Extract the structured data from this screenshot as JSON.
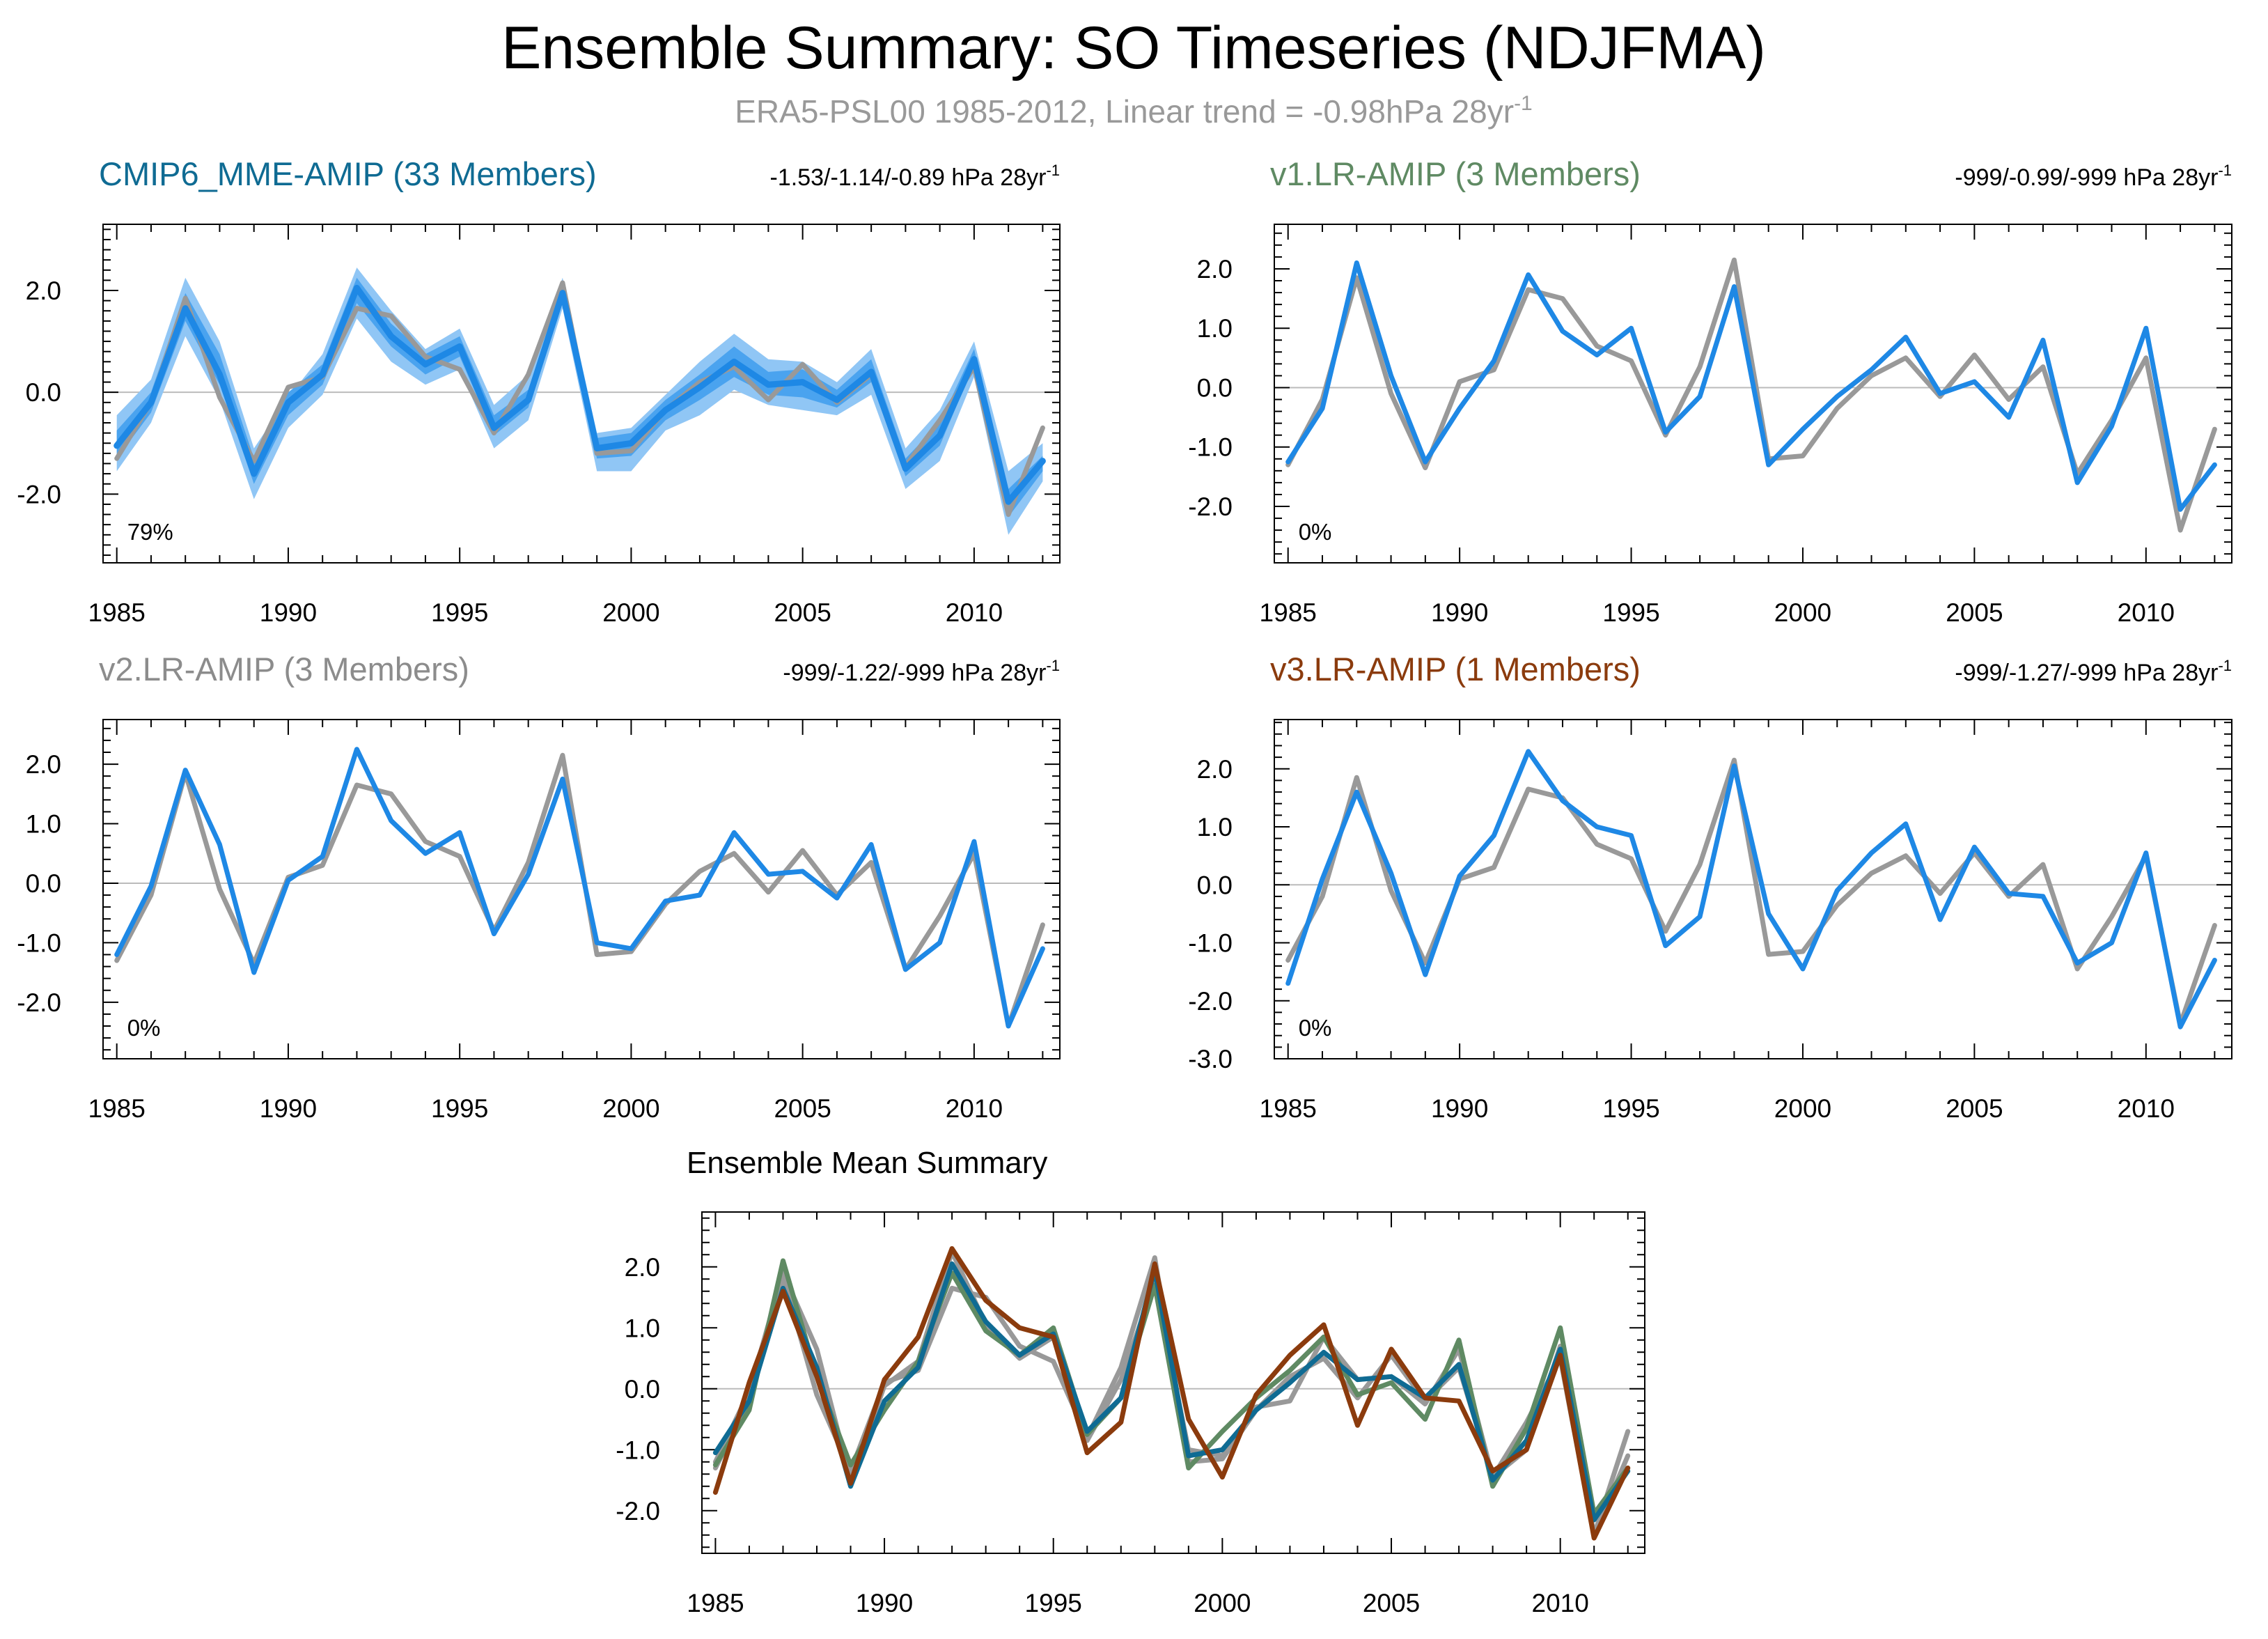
{
  "figure": {
    "title": "Ensemble Summary: SO Timeseries (NDJFMA)",
    "subtitle_main": "ERA5-PSL00 1985-2012, Linear trend = -0.98hPa 28yr",
    "subtitle_sup": "-1"
  },
  "colors": {
    "obs": "#999999",
    "model": "#1e88e5",
    "band_light": "#90c6f5",
    "band_mid": "#4aa3ef",
    "ref_line": "#bbbbbb",
    "title_cmip6": "#0f6b93",
    "title_v1": "#5f8a63",
    "title_v2": "#8c8c8c",
    "title_v3": "#8b3b0d",
    "mean_cmip6": "#0f6b93",
    "mean_v1": "#5f8a63",
    "mean_v2": "#999999",
    "mean_v3": "#8b3b0d"
  },
  "chart_data": [
    {
      "type": "line",
      "title": "CMIP6_MME-AMIP (33 Members)",
      "title_color": "title_cmip6",
      "trend_label": "-1.53/-1.14/-0.89 hPa 28yr",
      "trend_sup": "-1",
      "percent_label": "79%",
      "x": [
        1985,
        1986,
        1987,
        1988,
        1989,
        1990,
        1991,
        1992,
        1993,
        1994,
        1995,
        1996,
        1997,
        1998,
        1999,
        2000,
        2001,
        2002,
        2003,
        2004,
        2005,
        2006,
        2007,
        2008,
        2009,
        2010,
        2011,
        2012
      ],
      "xlim": [
        1984.6,
        2012.5
      ],
      "xticks": [
        1985,
        1990,
        1995,
        2000,
        2005,
        2010
      ],
      "ylim": [
        -3.35,
        3.3
      ],
      "yticks": [
        -2.0,
        0.0,
        2.0
      ],
      "ytick_labels": [
        "-2.0",
        "0.0",
        "2.0"
      ],
      "band_outer_upper": [
        -0.45,
        0.25,
        2.25,
        1.0,
        -1.1,
        -0.1,
        0.75,
        2.45,
        1.6,
        0.85,
        1.25,
        -0.25,
        0.35,
        2.25,
        -0.8,
        -0.7,
        -0.05,
        0.6,
        1.15,
        0.65,
        0.6,
        0.2,
        0.85,
        -1.1,
        -0.35,
        1.0,
        -1.55,
        -1.0
      ],
      "band_outer_lower": [
        -1.55,
        -0.6,
        1.1,
        -0.15,
        -2.1,
        -0.7,
        -0.05,
        1.45,
        0.6,
        0.15,
        0.45,
        -1.1,
        -0.55,
        1.65,
        -1.55,
        -1.55,
        -0.75,
        -0.45,
        0.05,
        -0.25,
        -0.35,
        -0.45,
        -0.05,
        -1.9,
        -1.35,
        0.3,
        -2.8,
        -1.75
      ],
      "band_inner_upper": [
        -0.75,
        0.0,
        1.95,
        0.75,
        -1.3,
        0.0,
        0.55,
        2.25,
        1.35,
        0.75,
        1.1,
        -0.45,
        0.05,
        2.1,
        -0.9,
        -0.8,
        -0.15,
        0.35,
        0.9,
        0.4,
        0.45,
        0.05,
        0.65,
        -1.3,
        -0.6,
        0.85,
        -1.9,
        -1.25
      ],
      "band_inner_lower": [
        -1.3,
        -0.4,
        1.4,
        0.15,
        -1.8,
        -0.45,
        0.15,
        1.75,
        0.9,
        0.35,
        0.7,
        -0.85,
        -0.3,
        1.8,
        -1.3,
        -1.25,
        -0.55,
        -0.15,
        0.3,
        -0.05,
        -0.1,
        -0.3,
        0.2,
        -1.65,
        -1.05,
        0.55,
        -2.45,
        -1.55
      ],
      "series": [
        {
          "name": "ERA5-PSL00",
          "color": "obs",
          "width": 7,
          "values": [
            -1.3,
            -0.2,
            1.85,
            -0.1,
            -1.35,
            0.1,
            0.3,
            1.65,
            1.5,
            0.7,
            0.45,
            -0.8,
            0.35,
            2.15,
            -1.2,
            -1.15,
            -0.35,
            0.2,
            0.5,
            -0.15,
            0.55,
            -0.2,
            0.35,
            -1.45,
            -0.55,
            0.5,
            -2.4,
            -0.7
          ]
        },
        {
          "name": "CMIP6_MME-AMIP",
          "color": "model",
          "width": 9,
          "values": [
            -1.05,
            -0.2,
            1.65,
            0.35,
            -1.6,
            -0.2,
            0.35,
            2.05,
            1.1,
            0.55,
            0.9,
            -0.7,
            -0.15,
            1.95,
            -1.1,
            -1.0,
            -0.35,
            0.1,
            0.6,
            0.15,
            0.2,
            -0.15,
            0.4,
            -1.5,
            -0.85,
            0.65,
            -2.15,
            -1.35
          ]
        }
      ]
    },
    {
      "type": "line",
      "title": "v1.LR-AMIP (3 Members)",
      "title_color": "title_v1",
      "trend_label": "-999/-0.99/-999 hPa 28yr",
      "trend_sup": "-1",
      "percent_label": "0%",
      "x": [
        1985,
        1986,
        1987,
        1988,
        1989,
        1990,
        1991,
        1992,
        1993,
        1994,
        1995,
        1996,
        1997,
        1998,
        1999,
        2000,
        2001,
        2002,
        2003,
        2004,
        2005,
        2006,
        2007,
        2008,
        2009,
        2010,
        2011,
        2012
      ],
      "xlim": [
        1984.6,
        2012.5
      ],
      "xticks": [
        1985,
        1990,
        1995,
        2000,
        2005,
        2010
      ],
      "ylim": [
        -2.95,
        2.75
      ],
      "yticks": [
        -2.0,
        -1.0,
        0.0,
        1.0,
        2.0
      ],
      "ytick_labels": [
        "-2.0",
        "-1.0",
        "0.0",
        "1.0",
        "2.0"
      ],
      "series": [
        {
          "name": "ERA5-PSL00",
          "color": "obs",
          "width": 7,
          "values": [
            -1.3,
            -0.2,
            1.85,
            -0.1,
            -1.35,
            0.1,
            0.3,
            1.65,
            1.5,
            0.7,
            0.45,
            -0.8,
            0.35,
            2.15,
            -1.2,
            -1.15,
            -0.35,
            0.2,
            0.5,
            -0.15,
            0.55,
            -0.2,
            0.35,
            -1.45,
            -0.55,
            0.5,
            -2.4,
            -0.7
          ]
        },
        {
          "name": "v1.LR-AMIP",
          "color": "model",
          "width": 7,
          "values": [
            -1.25,
            -0.35,
            2.1,
            0.2,
            -1.25,
            -0.35,
            0.45,
            1.9,
            0.95,
            0.55,
            1.0,
            -0.75,
            -0.15,
            1.7,
            -1.3,
            -0.7,
            -0.15,
            0.3,
            0.85,
            -0.1,
            0.1,
            -0.5,
            0.8,
            -1.6,
            -0.65,
            1.0,
            -2.05,
            -1.3
          ]
        }
      ]
    },
    {
      "type": "line",
      "title": "v2.LR-AMIP (3 Members)",
      "title_color": "title_v2",
      "trend_label": "-999/-1.22/-999 hPa 28yr",
      "trend_sup": "-1",
      "percent_label": "0%",
      "x": [
        1985,
        1986,
        1987,
        1988,
        1989,
        1990,
        1991,
        1992,
        1993,
        1994,
        1995,
        1996,
        1997,
        1998,
        1999,
        2000,
        2001,
        2002,
        2003,
        2004,
        2005,
        2006,
        2007,
        2008,
        2009,
        2010,
        2011,
        2012
      ],
      "xlim": [
        1984.6,
        2012.5
      ],
      "xticks": [
        1985,
        1990,
        1995,
        2000,
        2005,
        2010
      ],
      "ylim": [
        -2.95,
        2.75
      ],
      "yticks": [
        -2.0,
        -1.0,
        0.0,
        1.0,
        2.0
      ],
      "ytick_labels": [
        "-2.0",
        "-1.0",
        "0.0",
        "1.0",
        "2.0"
      ],
      "series": [
        {
          "name": "ERA5-PSL00",
          "color": "obs",
          "width": 7,
          "values": [
            -1.3,
            -0.2,
            1.85,
            -0.1,
            -1.35,
            0.1,
            0.3,
            1.65,
            1.5,
            0.7,
            0.45,
            -0.8,
            0.35,
            2.15,
            -1.2,
            -1.15,
            -0.35,
            0.2,
            0.5,
            -0.15,
            0.55,
            -0.2,
            0.35,
            -1.45,
            -0.55,
            0.5,
            -2.4,
            -0.7
          ]
        },
        {
          "name": "v2.LR-AMIP",
          "color": "model",
          "width": 7,
          "values": [
            -1.2,
            -0.05,
            1.9,
            0.65,
            -1.5,
            0.05,
            0.45,
            2.25,
            1.05,
            0.5,
            0.85,
            -0.85,
            0.15,
            1.75,
            -1.0,
            -1.1,
            -0.3,
            -0.2,
            0.85,
            0.15,
            0.2,
            -0.25,
            0.65,
            -1.45,
            -1.0,
            0.7,
            -2.4,
            -1.1
          ]
        }
      ]
    },
    {
      "type": "line",
      "title": "v3.LR-AMIP (1 Members)",
      "title_color": "title_v3",
      "trend_label": "-999/-1.27/-999 hPa 28yr",
      "trend_sup": "-1",
      "percent_label": "0%",
      "x": [
        1985,
        1986,
        1987,
        1988,
        1989,
        1990,
        1991,
        1992,
        1993,
        1994,
        1995,
        1996,
        1997,
        1998,
        1999,
        2000,
        2001,
        2002,
        2003,
        2004,
        2005,
        2006,
        2007,
        2008,
        2009,
        2010,
        2011,
        2012
      ],
      "xlim": [
        1984.6,
        2012.5
      ],
      "xticks": [
        1985,
        1990,
        1995,
        2000,
        2005,
        2010
      ],
      "ylim": [
        -3.0,
        2.85
      ],
      "yticks": [
        -3.0,
        -2.0,
        -1.0,
        0.0,
        1.0,
        2.0
      ],
      "ytick_labels": [
        "-3.0",
        "-2.0",
        "-1.0",
        "0.0",
        "1.0",
        "2.0"
      ],
      "series": [
        {
          "name": "ERA5-PSL00",
          "color": "obs",
          "width": 7,
          "values": [
            -1.3,
            -0.2,
            1.85,
            -0.1,
            -1.35,
            0.1,
            0.3,
            1.65,
            1.5,
            0.7,
            0.45,
            -0.8,
            0.35,
            2.15,
            -1.2,
            -1.15,
            -0.35,
            0.2,
            0.5,
            -0.15,
            0.55,
            -0.2,
            0.35,
            -1.45,
            -0.55,
            0.5,
            -2.4,
            -0.7
          ]
        },
        {
          "name": "v3.LR-AMIP",
          "color": "model",
          "width": 7,
          "values": [
            -1.7,
            0.1,
            1.6,
            0.2,
            -1.55,
            0.15,
            0.85,
            2.3,
            1.45,
            1.0,
            0.85,
            -1.05,
            -0.55,
            2.05,
            -0.5,
            -1.45,
            -0.1,
            0.55,
            1.05,
            -0.6,
            0.65,
            -0.15,
            -0.2,
            -1.35,
            -1.0,
            0.55,
            -2.45,
            -1.3
          ]
        }
      ]
    },
    {
      "type": "line",
      "title": "Ensemble Mean Summary",
      "title_color": "",
      "trend_label": "",
      "trend_sup": "",
      "percent_label": "",
      "x": [
        1985,
        1986,
        1987,
        1988,
        1989,
        1990,
        1991,
        1992,
        1993,
        1994,
        1995,
        1996,
        1997,
        1998,
        1999,
        2000,
        2001,
        2002,
        2003,
        2004,
        2005,
        2006,
        2007,
        2008,
        2009,
        2010,
        2011,
        2012
      ],
      "xlim": [
        1984.6,
        2012.5
      ],
      "xticks": [
        1985,
        1990,
        1995,
        2000,
        2005,
        2010
      ],
      "ylim": [
        -2.7,
        2.9
      ],
      "yticks": [
        -2.0,
        -1.0,
        0.0,
        1.0,
        2.0
      ],
      "ytick_labels": [
        "-2.0",
        "-1.0",
        "0.0",
        "1.0",
        "2.0"
      ],
      "series": [
        {
          "name": "ERA5-PSL00",
          "color": "mean_v2",
          "width": 7,
          "values": [
            -1.3,
            -0.2,
            1.85,
            -0.1,
            -1.35,
            0.1,
            0.3,
            1.65,
            1.5,
            0.7,
            0.45,
            -0.8,
            0.35,
            2.15,
            -1.2,
            -1.15,
            -0.35,
            0.2,
            0.5,
            -0.15,
            0.55,
            -0.2,
            0.35,
            -1.45,
            -0.55,
            0.5,
            -2.4,
            -0.7
          ]
        },
        {
          "name": "v2.LR-AMIP",
          "color": "mean_v2",
          "width": 7,
          "values": [
            -1.2,
            -0.05,
            1.9,
            0.65,
            -1.5,
            0.05,
            0.45,
            2.25,
            1.05,
            0.5,
            0.85,
            -0.85,
            0.15,
            1.75,
            -1.0,
            -1.1,
            -0.3,
            -0.2,
            0.85,
            0.15,
            0.2,
            -0.25,
            0.65,
            -1.45,
            -1.0,
            0.7,
            -2.4,
            -1.1
          ]
        },
        {
          "name": "v1.LR-AMIP",
          "color": "mean_v1",
          "width": 7,
          "values": [
            -1.25,
            -0.35,
            2.1,
            0.2,
            -1.25,
            -0.35,
            0.45,
            1.9,
            0.95,
            0.55,
            1.0,
            -0.75,
            -0.15,
            1.7,
            -1.3,
            -0.7,
            -0.15,
            0.3,
            0.85,
            -0.1,
            0.1,
            -0.5,
            0.8,
            -1.6,
            -0.65,
            1.0,
            -2.05,
            -1.3
          ]
        },
        {
          "name": "CMIP6_MME-AMIP",
          "color": "mean_cmip6",
          "width": 7,
          "values": [
            -1.05,
            -0.2,
            1.65,
            0.35,
            -1.6,
            -0.2,
            0.35,
            2.05,
            1.1,
            0.55,
            0.9,
            -0.7,
            -0.15,
            1.95,
            -1.1,
            -1.0,
            -0.35,
            0.1,
            0.6,
            0.15,
            0.2,
            -0.15,
            0.4,
            -1.5,
            -0.85,
            0.65,
            -2.15,
            -1.35
          ]
        },
        {
          "name": "v3.LR-AMIP",
          "color": "mean_v3",
          "width": 7,
          "values": [
            -1.7,
            0.1,
            1.6,
            0.2,
            -1.55,
            0.15,
            0.85,
            2.3,
            1.45,
            1.0,
            0.85,
            -1.05,
            -0.55,
            2.05,
            -0.5,
            -1.45,
            -0.1,
            0.55,
            1.05,
            -0.6,
            0.65,
            -0.15,
            -0.2,
            -1.35,
            -1.0,
            0.55,
            -2.45,
            -1.3
          ]
        }
      ]
    }
  ]
}
